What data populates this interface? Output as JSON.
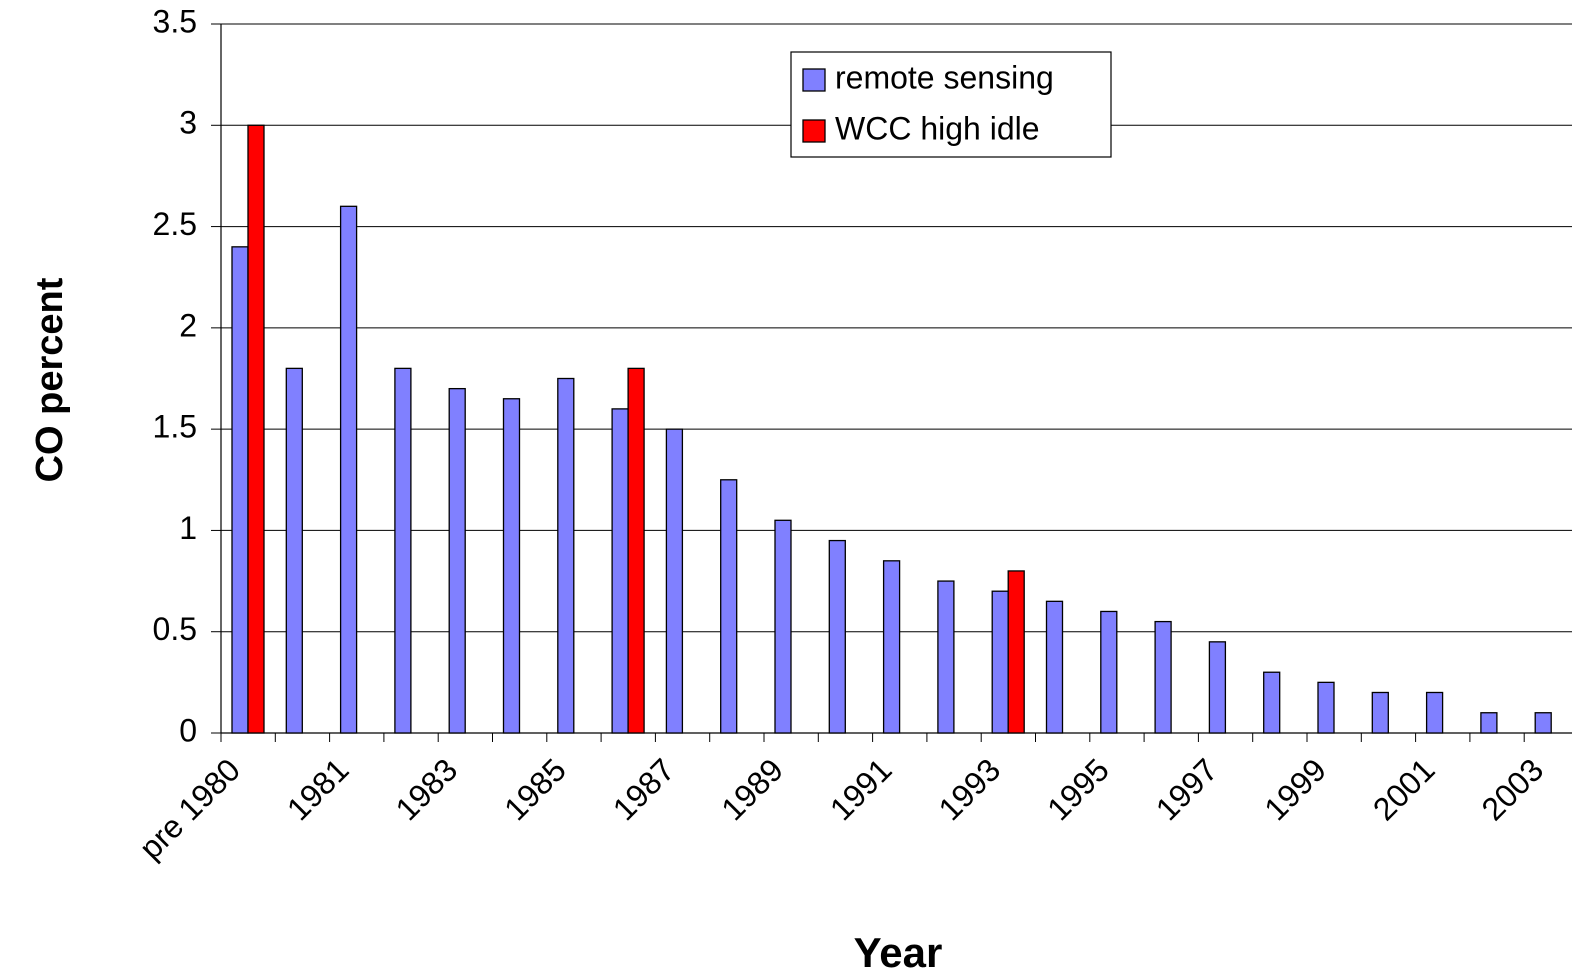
{
  "chart_data": {
    "type": "bar",
    "x_label": "Year",
    "y_label": "CO percent",
    "categories": [
      "pre 1980",
      null,
      "1981",
      null,
      "1983",
      null,
      "1985",
      null,
      "1987",
      null,
      "1989",
      null,
      "1991",
      null,
      "1993",
      null,
      "1995",
      null,
      "1997",
      null,
      "1999",
      null,
      "2001",
      null,
      "2003"
    ],
    "series": [
      {
        "name": "remote sensing",
        "color": "#8080ff",
        "values": [
          2.4,
          1.8,
          2.6,
          1.8,
          1.7,
          1.65,
          1.75,
          1.6,
          1.5,
          1.25,
          1.05,
          0.95,
          0.85,
          0.75,
          0.7,
          0.65,
          0.6,
          0.55,
          0.45,
          0.3,
          0.25,
          0.2,
          0.2,
          0.1,
          0.1
        ]
      },
      {
        "name": "WCC high idle",
        "color": "#ff0000",
        "values": [
          3.0,
          null,
          null,
          null,
          null,
          null,
          null,
          1.8,
          null,
          null,
          null,
          null,
          null,
          null,
          0.8,
          null,
          null,
          null,
          null,
          null,
          null,
          null,
          null,
          null,
          null
        ]
      }
    ],
    "ylim": [
      0,
      3.5
    ],
    "yticks": [
      0,
      0.5,
      1,
      1.5,
      2,
      2.5,
      3,
      3.5
    ],
    "grid": true,
    "legend": "top-center"
  }
}
